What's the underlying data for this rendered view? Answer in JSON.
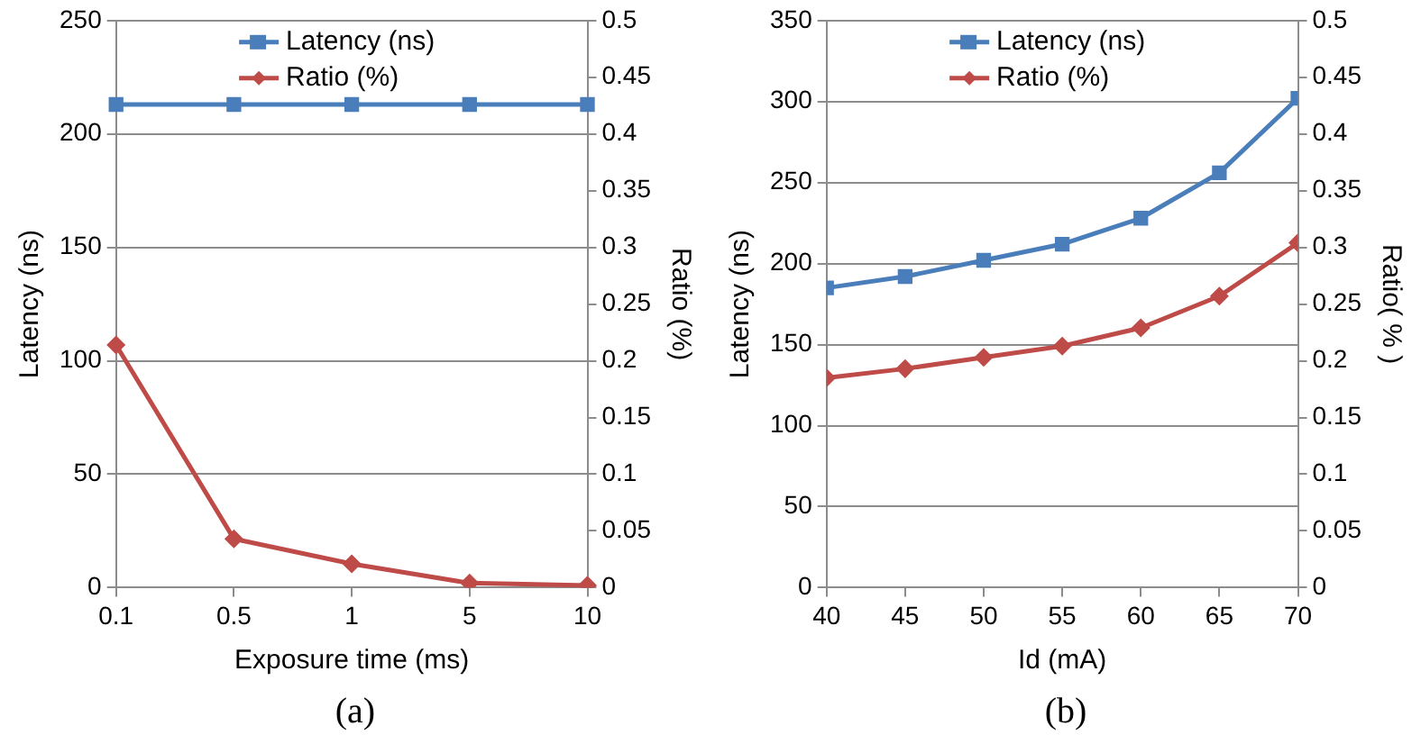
{
  "chart_data": [
    {
      "type": "line",
      "categories": [
        "0.1",
        "0.5",
        "1",
        "5",
        "10"
      ],
      "xlabel": "Exposure time (ms)",
      "ylabel": "Latency (ns)",
      "y2label": "Ratio (%)",
      "ylim": [
        0,
        250
      ],
      "yticks": [
        0,
        50,
        100,
        150,
        200,
        250
      ],
      "y2lim": [
        0,
        0.5
      ],
      "y2ticks": [
        0,
        0.05,
        0.1,
        0.15,
        0.2,
        0.25,
        0.3,
        0.35,
        0.4,
        0.45,
        0.5
      ],
      "grid": "y",
      "legend": "top",
      "annotations": [
        "(a)"
      ],
      "series": [
        {
          "name": "Latency (ns)",
          "color": "#4a7ebb",
          "marker": "square",
          "values": [
            213,
            213,
            213,
            213,
            213
          ]
        },
        {
          "name": "Ratio (%)",
          "color": "#be4b48",
          "marker": "diamond",
          "axis": "y2",
          "values": [
            0.214,
            0.043,
            0.021,
            0.004,
            0.002
          ]
        }
      ]
    },
    {
      "type": "line",
      "x": [
        40,
        45,
        50,
        55,
        60,
        65,
        70
      ],
      "xlim": [
        40,
        70
      ],
      "xticks": [
        40,
        45,
        50,
        55,
        60,
        65,
        70
      ],
      "xlabel": "Id (mA)",
      "ylabel": "Latency (ns)",
      "y2label": "Ratio( % )",
      "ylim": [
        0,
        350
      ],
      "yticks": [
        0,
        50,
        100,
        150,
        200,
        250,
        300,
        350
      ],
      "y2lim": [
        0,
        0.5
      ],
      "y2ticks": [
        0,
        0.05,
        0.1,
        0.15,
        0.2,
        0.25,
        0.3,
        0.35,
        0.4,
        0.45,
        0.5
      ],
      "grid": "y",
      "legend": "top",
      "annotations": [
        "(b)"
      ],
      "series": [
        {
          "name": "Latency (ns)",
          "color": "#4a7ebb",
          "marker": "square",
          "values": [
            185,
            192,
            202,
            212,
            228,
            256,
            302
          ]
        },
        {
          "name": "Ratio (%)",
          "color": "#be4b48",
          "marker": "diamond",
          "axis": "y2",
          "values": [
            0.185,
            0.193,
            0.203,
            0.213,
            0.229,
            0.257,
            0.304
          ]
        }
      ]
    }
  ]
}
